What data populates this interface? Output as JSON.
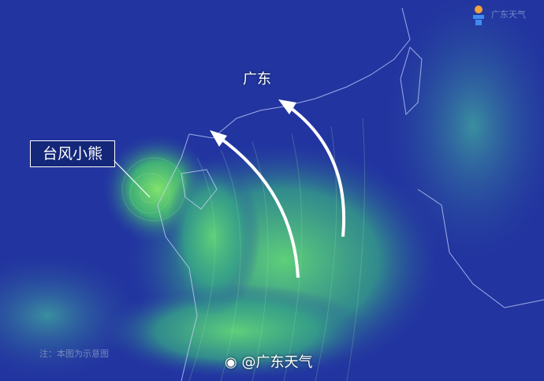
{
  "labels": {
    "typhoon": "台风小熊",
    "region": "广东"
  },
  "note": "注：本图为示意图",
  "watermark": {
    "handle": "@广东天气",
    "icon": "weibo-icon"
  },
  "logo": {
    "text": "广东天气",
    "icon": "sun-lighthouse-icon"
  },
  "colors": {
    "ocean_calm": "#2234a0",
    "wind_strong": "#4fc97a",
    "arrow": "#ffffff",
    "coastline": "#c9d4ff"
  }
}
